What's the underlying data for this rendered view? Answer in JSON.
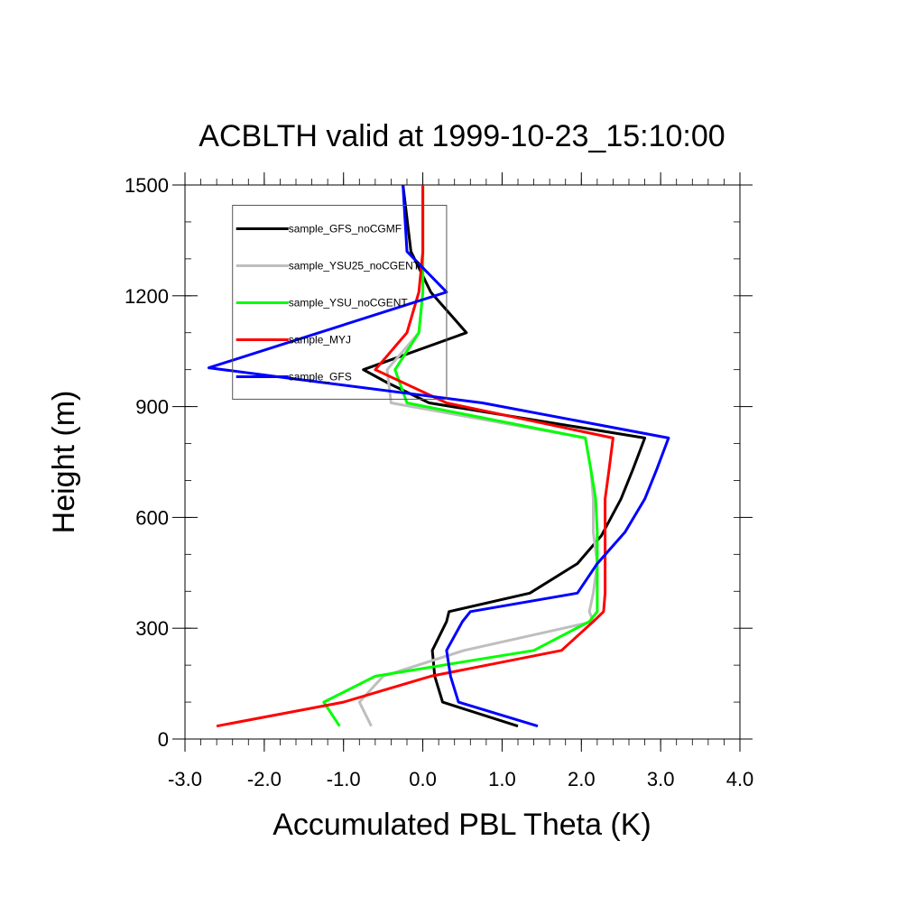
{
  "chart_data": {
    "type": "line",
    "title": "ACBLTH valid at 1999-10-23_15:10:00",
    "xlabel": "Accumulated PBL Theta (K)",
    "ylabel": "Height (m)",
    "xlim": [
      -3.0,
      4.0
    ],
    "ylim": [
      0,
      1500
    ],
    "xticks": [
      -3.0,
      -2.0,
      -1.0,
      0.0,
      1.0,
      2.0,
      3.0,
      4.0
    ],
    "xtick_labels": [
      "-3.0",
      "-2.0",
      "-1.0",
      "0.0",
      "1.0",
      "2.0",
      "3.0",
      "4.0"
    ],
    "yticks": [
      0,
      300,
      600,
      900,
      1200,
      1500
    ],
    "ytick_labels": [
      "0",
      "300",
      "600",
      "900",
      "1200",
      "1500"
    ],
    "grid": false,
    "legend_position": "top-left",
    "series": [
      {
        "name": "sample_GFS_noCGMF",
        "color": "#000000",
        "points": [
          [
            1.2,
            35
          ],
          [
            0.25,
            100
          ],
          [
            0.15,
            170
          ],
          [
            0.12,
            240
          ],
          [
            0.3,
            318
          ],
          [
            0.33,
            345
          ],
          [
            1.35,
            395
          ],
          [
            1.95,
            475
          ],
          [
            2.25,
            550
          ],
          [
            2.5,
            650
          ],
          [
            2.65,
            730
          ],
          [
            2.8,
            815
          ],
          [
            0.08,
            910
          ],
          [
            -0.45,
            965
          ],
          [
            -0.75,
            1000
          ],
          [
            0.55,
            1100
          ],
          [
            0.1,
            1210
          ],
          [
            -0.15,
            1320
          ],
          [
            -0.25,
            1500
          ]
        ]
      },
      {
        "name": "sample_YSU25_noCGENT",
        "color": "#bebebe",
        "points": [
          [
            -0.65,
            35
          ],
          [
            -0.8,
            100
          ],
          [
            -0.5,
            170
          ],
          [
            0.52,
            240
          ],
          [
            2.15,
            318
          ],
          [
            2.1,
            345
          ],
          [
            2.15,
            395
          ],
          [
            2.2,
            475
          ],
          [
            2.15,
            560
          ],
          [
            2.15,
            650
          ],
          [
            2.12,
            730
          ],
          [
            2.05,
            815
          ],
          [
            -0.4,
            910
          ],
          [
            -0.45,
            1000
          ],
          [
            -0.05,
            1100
          ],
          [
            0.0,
            1210
          ],
          [
            0.0,
            1320
          ],
          [
            0.0,
            1500
          ]
        ]
      },
      {
        "name": "sample_YSU_noCGENT",
        "color": "#00ff00",
        "points": [
          [
            -1.05,
            35
          ],
          [
            -1.25,
            100
          ],
          [
            -0.6,
            170
          ],
          [
            1.4,
            240
          ],
          [
            2.1,
            318
          ],
          [
            2.2,
            345
          ],
          [
            2.2,
            395
          ],
          [
            2.2,
            475
          ],
          [
            2.2,
            560
          ],
          [
            2.18,
            650
          ],
          [
            2.12,
            730
          ],
          [
            2.05,
            815
          ],
          [
            -0.2,
            910
          ],
          [
            -0.35,
            1000
          ],
          [
            -0.05,
            1100
          ],
          [
            0.0,
            1210
          ],
          [
            0.0,
            1320
          ],
          [
            0.0,
            1500
          ]
        ]
      },
      {
        "name": "sample_MYJ",
        "color": "#ff0000",
        "points": [
          [
            -2.6,
            35
          ],
          [
            -1.0,
            100
          ],
          [
            0.1,
            170
          ],
          [
            1.75,
            240
          ],
          [
            2.15,
            318
          ],
          [
            2.28,
            345
          ],
          [
            2.3,
            395
          ],
          [
            2.3,
            475
          ],
          [
            2.3,
            560
          ],
          [
            2.3,
            650
          ],
          [
            2.35,
            730
          ],
          [
            2.4,
            815
          ],
          [
            0.3,
            910
          ],
          [
            -0.6,
            1000
          ],
          [
            -0.2,
            1100
          ],
          [
            -0.05,
            1210
          ],
          [
            0.0,
            1320
          ],
          [
            0.0,
            1500
          ]
        ]
      },
      {
        "name": "sample_GFS",
        "color": "#0000ff",
        "points": [
          [
            1.45,
            35
          ],
          [
            0.45,
            100
          ],
          [
            0.35,
            170
          ],
          [
            0.3,
            240
          ],
          [
            0.5,
            318
          ],
          [
            0.6,
            345
          ],
          [
            1.95,
            395
          ],
          [
            2.2,
            475
          ],
          [
            2.55,
            560
          ],
          [
            2.8,
            650
          ],
          [
            2.95,
            730
          ],
          [
            3.1,
            815
          ],
          [
            0.75,
            910
          ],
          [
            -1.8,
            980
          ],
          [
            -2.7,
            1005
          ],
          [
            0.3,
            1210
          ],
          [
            -0.2,
            1320
          ],
          [
            -0.25,
            1500
          ]
        ]
      }
    ]
  }
}
